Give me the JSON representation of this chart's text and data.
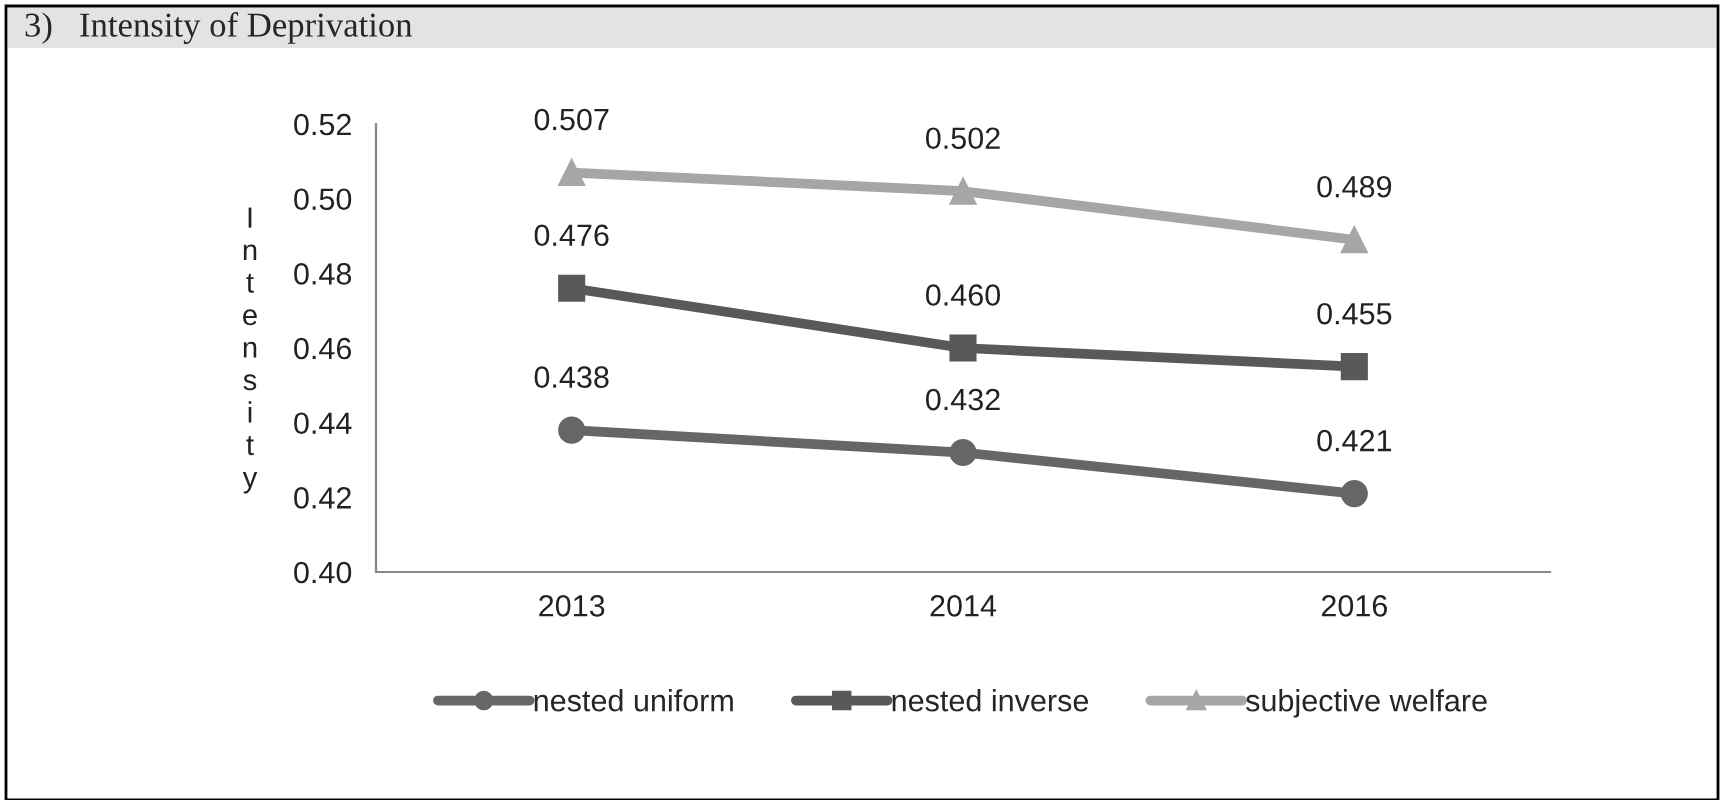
{
  "chart_data": {
    "type": "line",
    "title": "3)   Intensity of Deprivation",
    "ylabel": "Intensity",
    "categories": [
      "2013",
      "2014",
      "2016"
    ],
    "series": [
      {
        "name": "nested uniform",
        "color": "#666666",
        "marker": "circle",
        "values": [
          0.438,
          0.432,
          0.421
        ],
        "value_labels": [
          "0.438",
          "0.432",
          "0.421"
        ]
      },
      {
        "name": "nested inverse",
        "color": "#595959",
        "marker": "square",
        "values": [
          0.476,
          0.46,
          0.455
        ],
        "value_labels": [
          "0.476",
          "0.460",
          "0.455"
        ]
      },
      {
        "name": "subjective welfare",
        "color": "#a6a6a6",
        "marker": "triangle",
        "values": [
          0.507,
          0.502,
          0.489
        ],
        "value_labels": [
          "0.507",
          "0.502",
          "0.489"
        ]
      }
    ],
    "ylim": [
      0.4,
      0.52
    ],
    "yticks": [
      {
        "value": 0.4,
        "label": "0.40"
      },
      {
        "value": 0.42,
        "label": "0.42"
      },
      {
        "value": 0.44,
        "label": "0.44"
      },
      {
        "value": 0.46,
        "label": "0.46"
      },
      {
        "value": 0.48,
        "label": "0.48"
      },
      {
        "value": 0.5,
        "label": "0.50"
      },
      {
        "value": 0.52,
        "label": "0.52"
      }
    ],
    "legend": "bottom",
    "grid": false,
    "line_style": "solid"
  }
}
